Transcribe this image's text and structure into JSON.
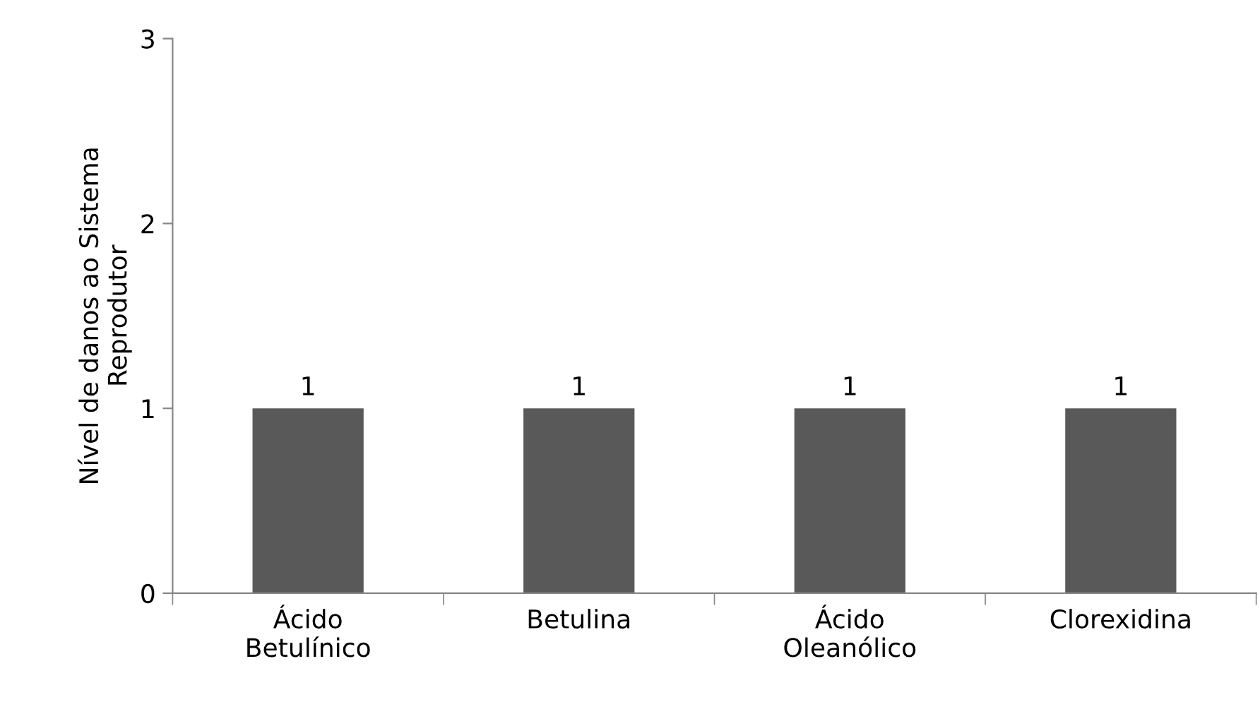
{
  "chart_data": {
    "type": "bar",
    "ylabel": "Nível de danos ao Sistema\nReprodutor",
    "categories": [
      "Ácido\nBetulínico",
      "Betulina",
      "Ácido\nOleanólico",
      "Clorexidina"
    ],
    "values": [
      1,
      1,
      1,
      1
    ],
    "color": "#595959",
    "ylim": [
      0,
      3
    ],
    "yticks": [
      0,
      1,
      2,
      3
    ],
    "grid": false,
    "data_labels": true
  }
}
